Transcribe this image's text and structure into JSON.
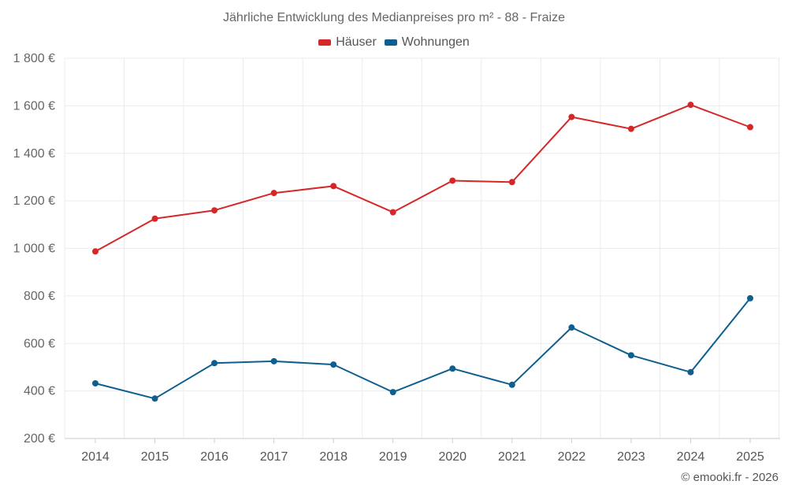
{
  "chart_data": {
    "type": "line",
    "title": "Jährliche Entwicklung des Medianpreises pro m² - 88 - Fraize",
    "categories": [
      "2014",
      "2015",
      "2016",
      "2017",
      "2018",
      "2019",
      "2020",
      "2021",
      "2022",
      "2023",
      "2024",
      "2025"
    ],
    "series": [
      {
        "name": "Häuser",
        "color": "#d62728",
        "values": [
          987,
          1125,
          1160,
          1233,
          1262,
          1152,
          1285,
          1279,
          1553,
          1503,
          1604,
          1510
        ]
      },
      {
        "name": "Wohnungen",
        "color": "#0d5f8f",
        "values": [
          432,
          368,
          517,
          525,
          511,
          395,
          494,
          426,
          667,
          550,
          479,
          790
        ]
      }
    ],
    "ylim": [
      200,
      1800
    ],
    "yticks": [
      200,
      400,
      600,
      800,
      1000,
      1200,
      1400,
      1600,
      1800
    ],
    "ytick_labels": [
      "200 €",
      "400 €",
      "600 €",
      "800 €",
      "1 000 €",
      "1 200 €",
      "1 400 €",
      "1 600 €",
      "1 800 €"
    ],
    "grid": true,
    "legend_position": "top-center",
    "credit": "© emooki.fr - 2026"
  }
}
